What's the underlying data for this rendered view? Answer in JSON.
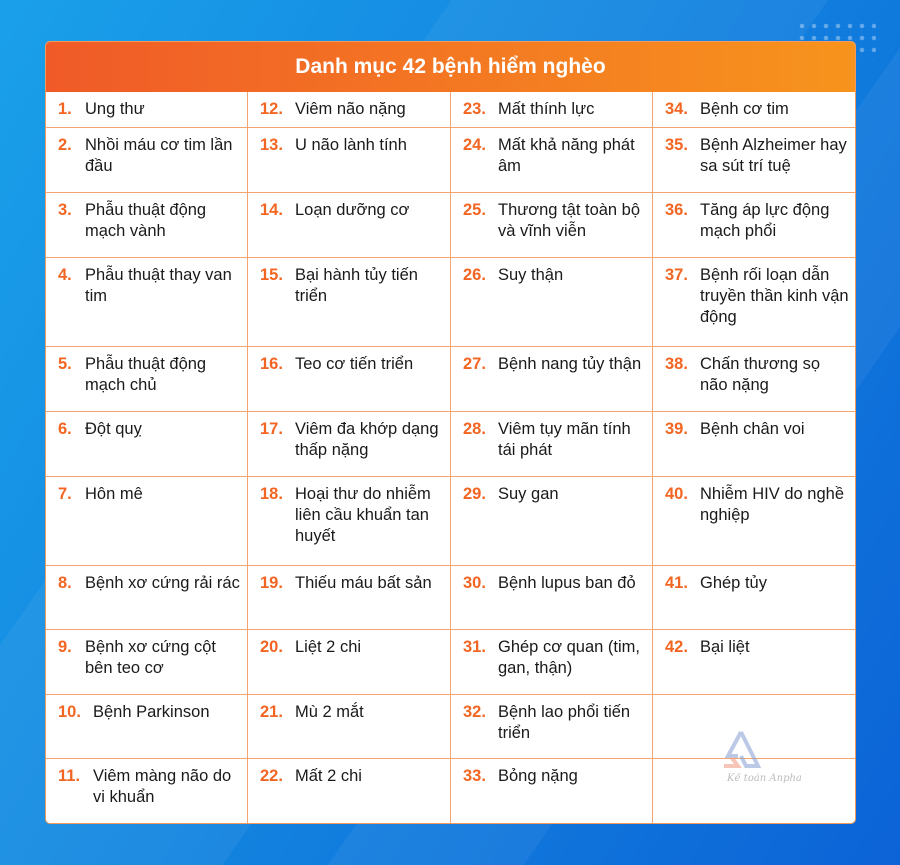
{
  "title": "Danh mục 42 bệnh hiểm nghèo",
  "watermark": "Kế toán Anpha",
  "colors": {
    "header_start": "#f05a28",
    "header_end": "#f7941d",
    "number": "#f26522",
    "border": "#f4a46e",
    "background": "#1386e0"
  },
  "diseases": [
    {
      "n": "1.",
      "t": "Ung thư"
    },
    {
      "n": "2.",
      "t": "Nhồi máu cơ tim lần đầu"
    },
    {
      "n": "3.",
      "t": "Phẫu thuật động mạch vành"
    },
    {
      "n": "4.",
      "t": "Phẫu thuật thay van tim"
    },
    {
      "n": "5.",
      "t": "Phẫu thuật động mạch chủ"
    },
    {
      "n": "6.",
      "t": "Đột quỵ"
    },
    {
      "n": "7.",
      "t": "Hôn mê"
    },
    {
      "n": "8.",
      "t": "Bệnh xơ cứng rải rác"
    },
    {
      "n": "9.",
      "t": "Bệnh xơ cứng cột bên teo cơ"
    },
    {
      "n": "10.",
      "t": "Bệnh Parkinson"
    },
    {
      "n": "11.",
      "t": "Viêm màng não do vi khuẩn"
    },
    {
      "n": "12.",
      "t": "Viêm não nặng"
    },
    {
      "n": "13.",
      "t": "U não lành tính"
    },
    {
      "n": "14.",
      "t": "Loạn dưỡng cơ"
    },
    {
      "n": "15.",
      "t": "Bại hành tủy tiến triển"
    },
    {
      "n": "16.",
      "t": "Teo cơ tiến triển"
    },
    {
      "n": "17.",
      "t": "Viêm đa khớp dạng thấp nặng"
    },
    {
      "n": "18.",
      "t": "Hoại thư do nhiễm liên cầu khuẩn tan huyết"
    },
    {
      "n": "19.",
      "t": "Thiếu máu bất sản"
    },
    {
      "n": "20.",
      "t": "Liệt 2 chi"
    },
    {
      "n": "21.",
      "t": "Mù 2 mắt"
    },
    {
      "n": "22.",
      "t": "Mất 2 chi"
    },
    {
      "n": "23.",
      "t": "Mất thính lực"
    },
    {
      "n": "24.",
      "t": "Mất khả năng phát âm"
    },
    {
      "n": "25.",
      "t": "Thương tật toàn bộ và vĩnh viễn"
    },
    {
      "n": "26.",
      "t": "Suy thận"
    },
    {
      "n": "27.",
      "t": "Bệnh nang tủy thận"
    },
    {
      "n": "28.",
      "t": "Viêm tụy mãn tính tái phát"
    },
    {
      "n": "29.",
      "t": "Suy gan"
    },
    {
      "n": "30.",
      "t": "Bệnh lupus ban đỏ"
    },
    {
      "n": "31.",
      "t": "Ghép cơ quan (tim, gan, thận)"
    },
    {
      "n": "32.",
      "t": "Bệnh lao phổi tiến triển"
    },
    {
      "n": "33.",
      "t": "Bỏng nặng"
    },
    {
      "n": "34.",
      "t": "Bệnh cơ tim"
    },
    {
      "n": "35.",
      "t": "Bệnh Alzheimer hay sa sút trí tuệ"
    },
    {
      "n": "36.",
      "t": "Tăng áp lực động mạch phổi"
    },
    {
      "n": "37.",
      "t": "Bệnh rối loạn dẫn truyền thần kinh vận động"
    },
    {
      "n": "38.",
      "t": "Chấn thương sọ não nặng"
    },
    {
      "n": "39.",
      "t": "Bệnh chân voi"
    },
    {
      "n": "40.",
      "t": "Nhiễm HIV do nghề nghiệp"
    },
    {
      "n": "41.",
      "t": "Ghép tủy"
    },
    {
      "n": "42.",
      "t": "Bại liệt"
    }
  ]
}
